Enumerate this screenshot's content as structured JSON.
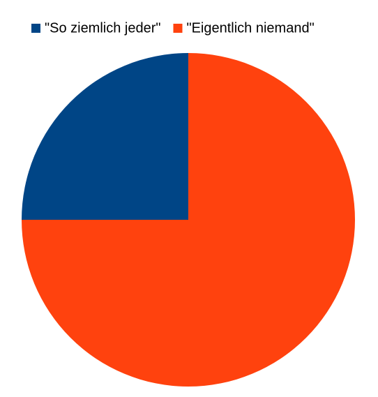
{
  "chart_data": {
    "type": "pie",
    "categories": [
      "\"So ziemlich jeder\"",
      "\"Eigentlich niemand\""
    ],
    "values": [
      25,
      75
    ],
    "colors": [
      "#004586",
      "#ff420e"
    ],
    "start_angle": 90,
    "direction": "counterclockwise",
    "legend": "top"
  }
}
